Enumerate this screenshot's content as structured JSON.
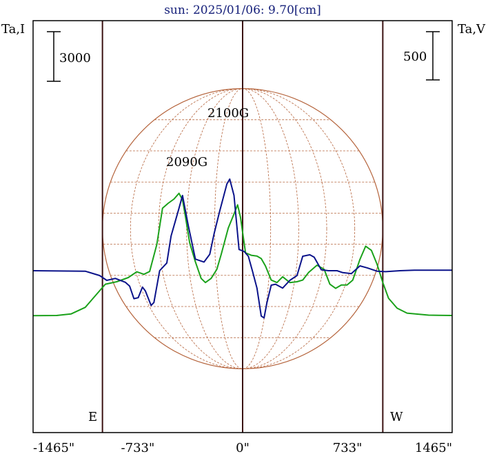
{
  "chart_data": {
    "type": "line",
    "title": "sun: 2025/01/06: 9.70[cm]",
    "left_axis_label": "Ta,I",
    "right_axis_label": "Ta,V",
    "left_scale_bar": "3000",
    "right_scale_bar": "500",
    "x_ticks": [
      {
        "value": -1465,
        "label": "-1465\""
      },
      {
        "value": -733,
        "label": "-733\""
      },
      {
        "value": 0,
        "label": "0\""
      },
      {
        "value": 733,
        "label": "733\""
      },
      {
        "value": 1465,
        "label": "1465\""
      }
    ],
    "xlim": [
      -1465,
      1465
    ],
    "limb_markers": [
      {
        "x": -980,
        "label": "E"
      },
      {
        "x": 0,
        "label": ""
      },
      {
        "x": 980,
        "label": "W"
      }
    ],
    "annotations": [
      {
        "text": "2100G",
        "x": -90
      },
      {
        "text": "2090G",
        "x": -380
      }
    ],
    "sun_disk": {
      "radius_arcsec": 980,
      "color": "#b5643c"
    },
    "colors": {
      "stokes_i": "#1aa11a",
      "stokes_v": "#0a128a",
      "frame": "#000000",
      "limb_lines": "#3a1010"
    },
    "series": [
      {
        "id": "I",
        "color": "#1aa11a",
        "points": [
          [
            -1465,
            -2800
          ],
          [
            -1300,
            -2790
          ],
          [
            -1200,
            -2700
          ],
          [
            -1100,
            -2300
          ],
          [
            -1020,
            -1500
          ],
          [
            -960,
            -900
          ],
          [
            -880,
            -750
          ],
          [
            -800,
            -500
          ],
          [
            -740,
            -150
          ],
          [
            -690,
            -300
          ],
          [
            -650,
            -130
          ],
          [
            -600,
            1500
          ],
          [
            -560,
            3700
          ],
          [
            -520,
            4000
          ],
          [
            -480,
            4250
          ],
          [
            -445,
            4600
          ],
          [
            -420,
            4200
          ],
          [
            -400,
            3200
          ],
          [
            -370,
            1600
          ],
          [
            -330,
            450
          ],
          [
            -290,
            -550
          ],
          [
            -260,
            -800
          ],
          [
            -220,
            -550
          ],
          [
            -180,
            0
          ],
          [
            -150,
            900
          ],
          [
            -100,
            2500
          ],
          [
            -60,
            3350
          ],
          [
            -35,
            3900
          ],
          [
            -15,
            3150
          ],
          [
            20,
            1000
          ],
          [
            60,
            850
          ],
          [
            100,
            800
          ],
          [
            130,
            650
          ],
          [
            160,
            200
          ],
          [
            200,
            -650
          ],
          [
            240,
            -800
          ],
          [
            280,
            -450
          ],
          [
            330,
            -800
          ],
          [
            380,
            -750
          ],
          [
            420,
            -650
          ],
          [
            460,
            -200
          ],
          [
            520,
            250
          ],
          [
            570,
            0
          ],
          [
            610,
            -900
          ],
          [
            650,
            -1150
          ],
          [
            690,
            -950
          ],
          [
            730,
            -950
          ],
          [
            770,
            -650
          ],
          [
            820,
            600
          ],
          [
            860,
            1400
          ],
          [
            900,
            1150
          ],
          [
            940,
            300
          ],
          [
            980,
            -800
          ],
          [
            1020,
            -1750
          ],
          [
            1080,
            -2350
          ],
          [
            1150,
            -2650
          ],
          [
            1300,
            -2770
          ],
          [
            1465,
            -2790
          ]
        ]
      },
      {
        "id": "V",
        "color": "#0a128a",
        "points": [
          [
            -1465,
            0
          ],
          [
            -1100,
            -5
          ],
          [
            -1000,
            -50
          ],
          [
            -950,
            -100
          ],
          [
            -890,
            -80
          ],
          [
            -820,
            -120
          ],
          [
            -790,
            -160
          ],
          [
            -760,
            -290
          ],
          [
            -730,
            -280
          ],
          [
            -700,
            -170
          ],
          [
            -680,
            -210
          ],
          [
            -640,
            -360
          ],
          [
            -620,
            -330
          ],
          [
            -580,
            0
          ],
          [
            -530,
            80
          ],
          [
            -500,
            360
          ],
          [
            -450,
            620
          ],
          [
            -420,
            780
          ],
          [
            -380,
            470
          ],
          [
            -330,
            120
          ],
          [
            -270,
            90
          ],
          [
            -230,
            170
          ],
          [
            -200,
            380
          ],
          [
            -160,
            620
          ],
          [
            -110,
            900
          ],
          [
            -90,
            950
          ],
          [
            -60,
            780
          ],
          [
            -25,
            220
          ],
          [
            10,
            200
          ],
          [
            40,
            150
          ],
          [
            70,
            -10
          ],
          [
            100,
            -180
          ],
          [
            130,
            -470
          ],
          [
            150,
            -490
          ],
          [
            170,
            -330
          ],
          [
            200,
            -150
          ],
          [
            230,
            -140
          ],
          [
            280,
            -180
          ],
          [
            330,
            -100
          ],
          [
            380,
            -50
          ],
          [
            420,
            150
          ],
          [
            470,
            165
          ],
          [
            500,
            140
          ],
          [
            550,
            10
          ],
          [
            600,
            0
          ],
          [
            660,
            0
          ],
          [
            700,
            -20
          ],
          [
            760,
            -30
          ],
          [
            820,
            50
          ],
          [
            870,
            30
          ],
          [
            940,
            -5
          ],
          [
            1000,
            -10
          ],
          [
            1100,
            0
          ],
          [
            1200,
            5
          ],
          [
            1465,
            5
          ]
        ]
      }
    ]
  }
}
